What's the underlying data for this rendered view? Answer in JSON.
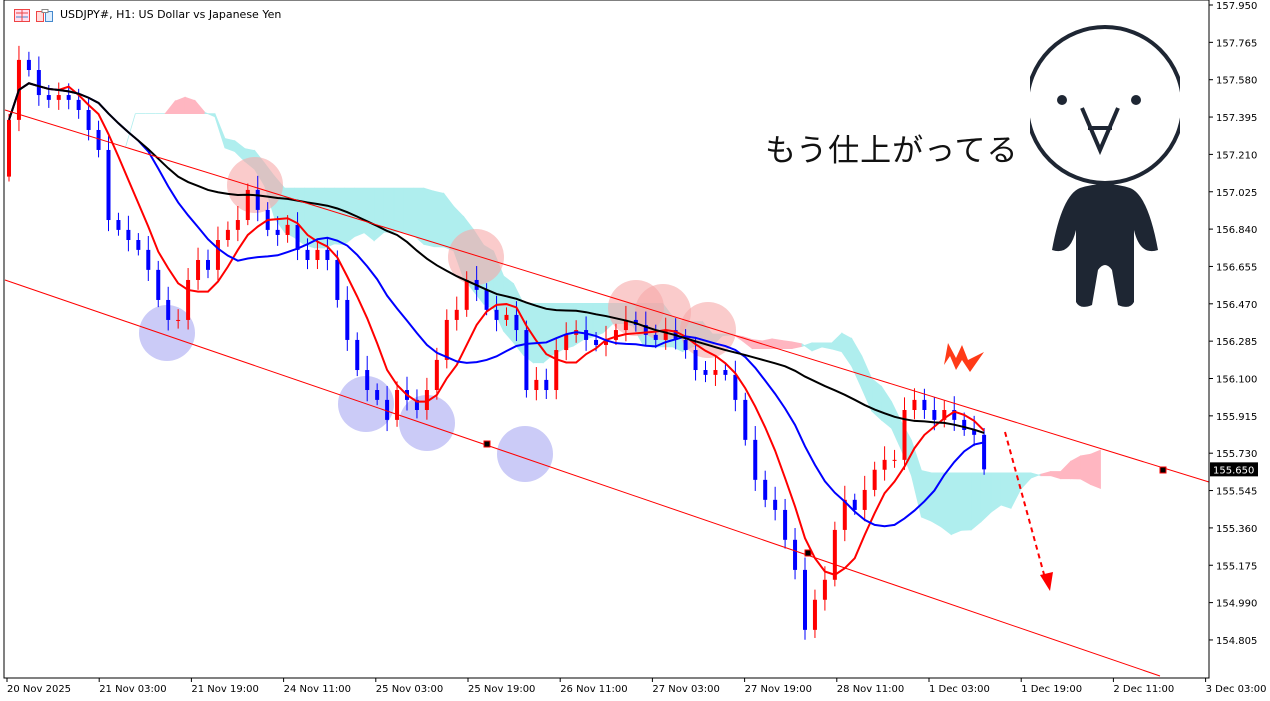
{
  "window": {
    "title": "USDJPY#, H1:  US Dollar vs Japanese Yen"
  },
  "annotation": {
    "text": "もう仕上がってる"
  },
  "chart_data": {
    "type": "candlestick",
    "symbol": "USDJPY#",
    "timeframe": "H1",
    "title": "US Dollar vs Japanese Yen",
    "ylim": [
      154.7,
      157.975
    ],
    "y_ticks": [
      "157.950",
      "157.765",
      "157.580",
      "157.395",
      "157.210",
      "157.025",
      "156.840",
      "156.655",
      "156.470",
      "156.285",
      "156.100",
      "155.915",
      "155.730",
      "155.545",
      "155.360",
      "155.175",
      "154.990",
      "154.805"
    ],
    "x_ticks": [
      "20 Nov 2025",
      "21 Nov 03:00",
      "21 Nov 19:00",
      "24 Nov 11:00",
      "25 Nov 03:00",
      "25 Nov 19:00",
      "26 Nov 11:00",
      "27 Nov 03:00",
      "27 Nov 19:00",
      "28 Nov 11:00",
      "1 Dec 03:00",
      "1 Dec 19:00",
      "2 Dec 11:00",
      "3 Dec 03:00"
    ],
    "current_price": "155.650",
    "first_open": 157.1,
    "closes": [
      157.381,
      157.678,
      157.628,
      157.504,
      157.48,
      157.504,
      157.48,
      157.43,
      157.331,
      157.232,
      156.885,
      156.836,
      156.786,
      156.737,
      156.638,
      156.489,
      156.39,
      156.39,
      156.588,
      156.687,
      156.638,
      156.786,
      156.836,
      156.885,
      157.034,
      156.935,
      156.836,
      156.811,
      156.861,
      156.737,
      156.687,
      156.737,
      156.687,
      156.489,
      156.291,
      156.142,
      156.043,
      155.994,
      155.895,
      156.043,
      155.994,
      155.944,
      156.043,
      156.192,
      156.39,
      156.44,
      156.588,
      156.539,
      156.44,
      156.39,
      156.415,
      156.34,
      156.043,
      156.093,
      156.043,
      156.241,
      156.316,
      156.34,
      156.291,
      156.266,
      156.291,
      156.34,
      156.39,
      156.365,
      156.316,
      156.291,
      156.34,
      156.291,
      156.241,
      156.142,
      156.118,
      156.142,
      156.118,
      155.994,
      155.796,
      155.598,
      155.499,
      155.449,
      155.301,
      155.152,
      154.855,
      155.004,
      155.103,
      155.35,
      155.499,
      155.449,
      155.548,
      155.648,
      155.697,
      155.697,
      155.944,
      155.994,
      155.944,
      155.895,
      155.944,
      155.895,
      155.845,
      155.821,
      155.65
    ],
    "colors": {
      "bull": "#ff0000",
      "bear": "#0000ff",
      "ma_fast": "#ff0000",
      "ma_mid": "#0000ff",
      "ma_slow": "#000000",
      "cloud_up": "#ffb6c1",
      "cloud_down": "#afeeee",
      "channel": "#ff0000"
    },
    "indicators": [
      "moving averages (red, blue, black)",
      "Ichimoku cloud",
      "parallel trend channel"
    ]
  }
}
